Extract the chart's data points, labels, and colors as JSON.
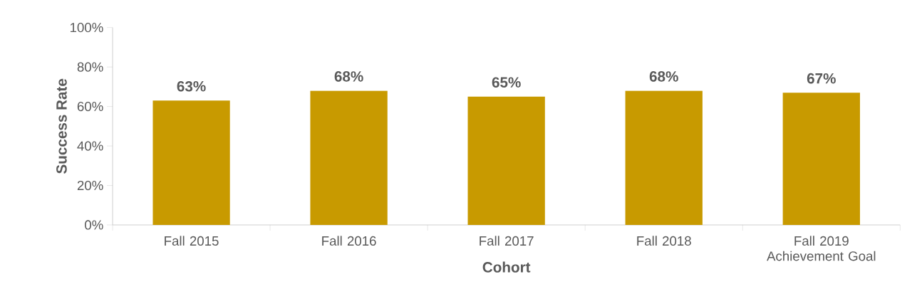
{
  "chart_data": {
    "type": "bar",
    "xlabel": "Cohort",
    "ylabel": "Success Rate",
    "categories": [
      "Fall 2015",
      "Fall 2016",
      "Fall 2017",
      "Fall 2018",
      "Fall 2019 Achievement Goal"
    ],
    "values": [
      63,
      68,
      65,
      68,
      67
    ],
    "value_labels": [
      "63%",
      "68%",
      "65%",
      "68%",
      "67%"
    ],
    "color": "#c89a00",
    "ylim": [
      0,
      100
    ],
    "yticks": [
      {
        "value": 0,
        "label": "0%"
      },
      {
        "value": 20,
        "label": "20%"
      },
      {
        "value": 40,
        "label": "40%"
      },
      {
        "value": 60,
        "label": "60%"
      },
      {
        "value": 80,
        "label": "80%"
      },
      {
        "value": 100,
        "label": "100%"
      }
    ],
    "grid": false
  }
}
